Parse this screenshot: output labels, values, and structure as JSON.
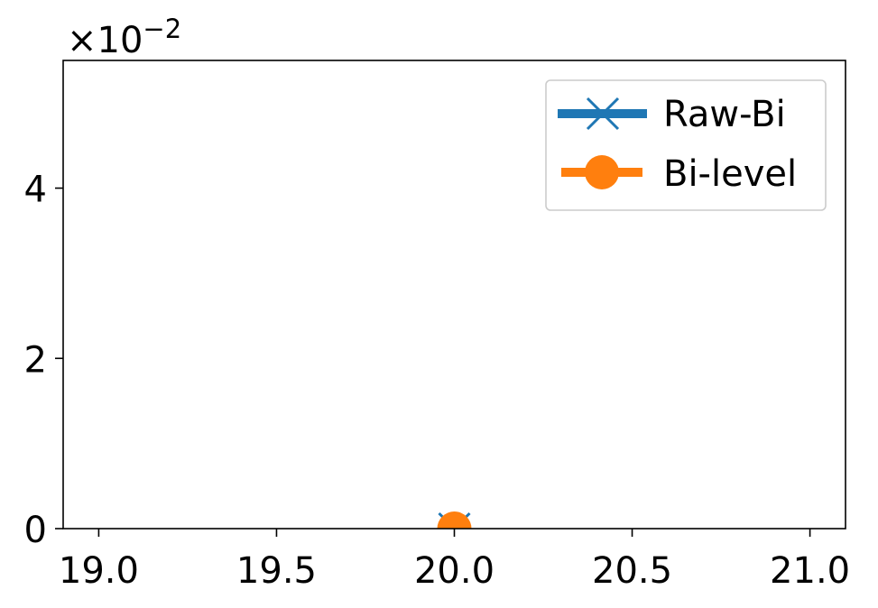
{
  "chart_data": {
    "type": "line",
    "title": "",
    "xlabel": "",
    "ylabel": "",
    "xlim": [
      18.9,
      21.1
    ],
    "ylim": [
      0,
      0.055
    ],
    "x_ticks": [
      19.0,
      19.5,
      20.0,
      20.5,
      21.0
    ],
    "x_tick_labels": [
      "19.0",
      "19.5",
      "20.0",
      "20.5",
      "21.0"
    ],
    "y_ticks": [
      0,
      0.02,
      0.04
    ],
    "y_tick_labels": [
      "0",
      "2",
      "4"
    ],
    "y_offset_label": {
      "base": "×10",
      "exponent": "−2"
    },
    "grid": false,
    "legend_position": "top-right",
    "series": [
      {
        "name": "Raw-Bi",
        "color": "#1f77b4",
        "marker": "x",
        "x": [
          20.0
        ],
        "y": [
          0.0
        ]
      },
      {
        "name": "Bi-level",
        "color": "#ff7f0e",
        "marker": "o",
        "x": [
          20.0
        ],
        "y": [
          0.0
        ]
      }
    ]
  }
}
